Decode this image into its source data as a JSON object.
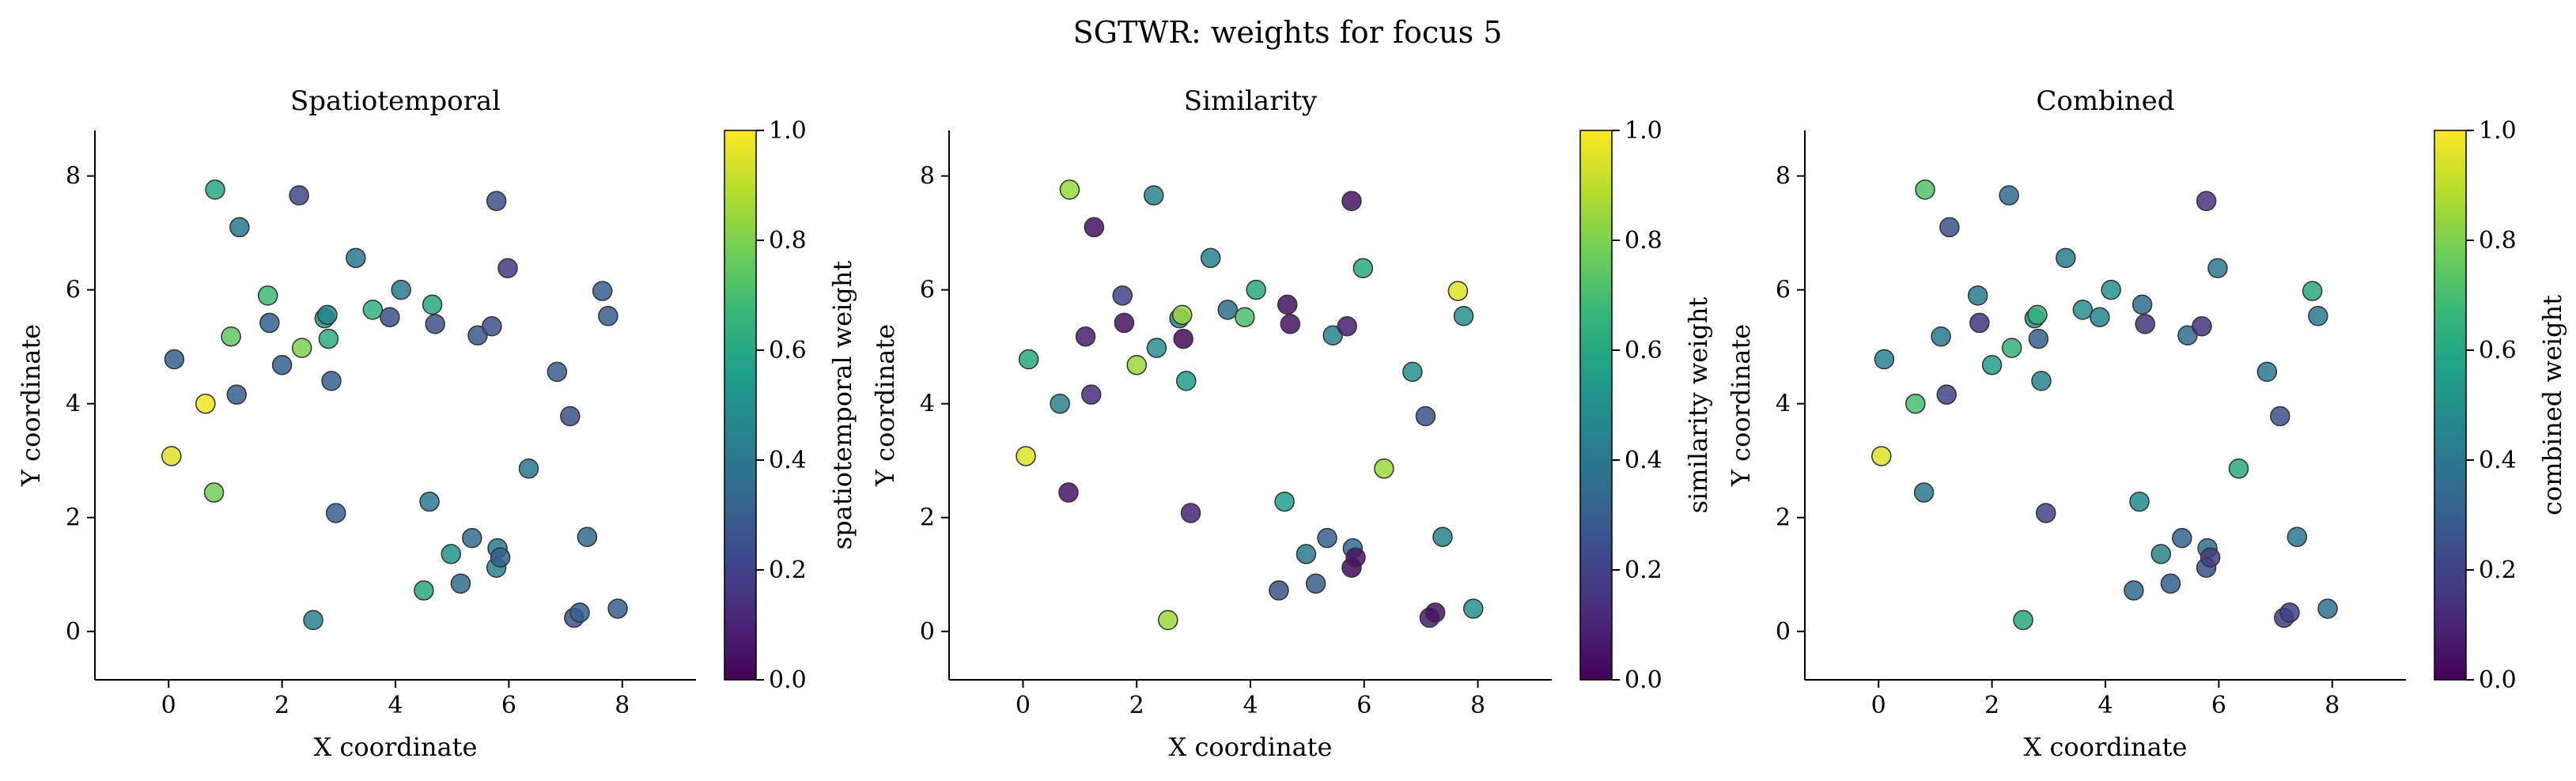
{
  "suptitle": "SGTWR: weights for focus 5",
  "colormap": "viridis",
  "colors": {
    "viridis_stops": [
      "#440154",
      "#482878",
      "#3e4989",
      "#31688e",
      "#26828e",
      "#1f9e89",
      "#35b779",
      "#6ece58",
      "#b5de2b",
      "#fde725"
    ],
    "axis": "#000000",
    "marker_edge": "#333333"
  },
  "chart_data": [
    {
      "type": "scatter",
      "title": "Spatiotemporal",
      "xlabel": "X coordinate",
      "ylabel": "Y coordinate",
      "colorbar_label": "spatiotemporal weight",
      "xlim": [
        -1.3,
        9.3
      ],
      "ylim": [
        -0.85,
        8.8
      ],
      "xticks": [
        0,
        2,
        4,
        6,
        8
      ],
      "yticks": [
        0,
        2,
        4,
        6,
        8
      ],
      "cbar_ticks": [
        "0.0",
        "0.2",
        "0.4",
        "0.6",
        "0.8",
        "1.0"
      ],
      "points": [
        {
          "x": 0.05,
          "y": 3.08,
          "w": 0.95
        },
        {
          "x": 0.1,
          "y": 4.78,
          "w": 0.3
        },
        {
          "x": 0.65,
          "y": 4.0,
          "w": 0.98
        },
        {
          "x": 0.8,
          "y": 2.44,
          "w": 0.78
        },
        {
          "x": 0.82,
          "y": 7.76,
          "w": 0.6
        },
        {
          "x": 1.1,
          "y": 5.18,
          "w": 0.75
        },
        {
          "x": 1.2,
          "y": 4.16,
          "w": 0.3
        },
        {
          "x": 1.25,
          "y": 7.1,
          "w": 0.4
        },
        {
          "x": 1.75,
          "y": 5.9,
          "w": 0.68
        },
        {
          "x": 1.78,
          "y": 5.42,
          "w": 0.3
        },
        {
          "x": 2.0,
          "y": 4.68,
          "w": 0.3
        },
        {
          "x": 2.3,
          "y": 7.66,
          "w": 0.22
        },
        {
          "x": 2.35,
          "y": 4.98,
          "w": 0.8
        },
        {
          "x": 2.75,
          "y": 5.5,
          "w": 0.52
        },
        {
          "x": 2.8,
          "y": 5.56,
          "w": 0.45
        },
        {
          "x": 2.82,
          "y": 5.14,
          "w": 0.62
        },
        {
          "x": 2.87,
          "y": 4.4,
          "w": 0.3
        },
        {
          "x": 2.95,
          "y": 2.08,
          "w": 0.3
        },
        {
          "x": 3.3,
          "y": 6.56,
          "w": 0.4
        },
        {
          "x": 3.6,
          "y": 5.65,
          "w": 0.65
        },
        {
          "x": 3.9,
          "y": 5.52,
          "w": 0.25
        },
        {
          "x": 4.1,
          "y": 6.0,
          "w": 0.4
        },
        {
          "x": 4.5,
          "y": 0.72,
          "w": 0.6
        },
        {
          "x": 4.6,
          "y": 2.28,
          "w": 0.4
        },
        {
          "x": 4.65,
          "y": 5.74,
          "w": 0.6
        },
        {
          "x": 4.7,
          "y": 5.4,
          "w": 0.25
        },
        {
          "x": 4.98,
          "y": 1.36,
          "w": 0.52
        },
        {
          "x": 5.15,
          "y": 0.84,
          "w": 0.35
        },
        {
          "x": 5.35,
          "y": 1.64,
          "w": 0.35
        },
        {
          "x": 5.45,
          "y": 5.2,
          "w": 0.28
        },
        {
          "x": 5.7,
          "y": 5.36,
          "w": 0.25
        },
        {
          "x": 5.78,
          "y": 7.56,
          "w": 0.25
        },
        {
          "x": 5.78,
          "y": 1.12,
          "w": 0.45
        },
        {
          "x": 5.8,
          "y": 1.46,
          "w": 0.42
        },
        {
          "x": 5.85,
          "y": 1.3,
          "w": 0.3
        },
        {
          "x": 5.98,
          "y": 6.38,
          "w": 0.18
        },
        {
          "x": 6.35,
          "y": 2.86,
          "w": 0.4
        },
        {
          "x": 6.85,
          "y": 4.56,
          "w": 0.3
        },
        {
          "x": 7.08,
          "y": 3.78,
          "w": 0.25
        },
        {
          "x": 7.15,
          "y": 0.24,
          "w": 0.25
        },
        {
          "x": 7.25,
          "y": 0.33,
          "w": 0.3
        },
        {
          "x": 7.38,
          "y": 1.66,
          "w": 0.35
        },
        {
          "x": 7.65,
          "y": 5.98,
          "w": 0.3
        },
        {
          "x": 7.75,
          "y": 5.54,
          "w": 0.3
        },
        {
          "x": 7.92,
          "y": 0.4,
          "w": 0.3
        },
        {
          "x": 2.55,
          "y": 0.2,
          "w": 0.45
        }
      ]
    },
    {
      "type": "scatter",
      "title": "Similarity",
      "xlabel": "X coordinate",
      "ylabel": "Y coordinate",
      "colorbar_label": "similarity weight",
      "xlim": [
        -1.3,
        9.3
      ],
      "ylim": [
        -0.85,
        8.8
      ],
      "xticks": [
        0,
        2,
        4,
        6,
        8
      ],
      "yticks": [
        0,
        2,
        4,
        6,
        8
      ],
      "cbar_ticks": [
        "0.0",
        "0.2",
        "0.4",
        "0.6",
        "0.8",
        "1.0"
      ],
      "points": [
        {
          "x": 0.05,
          "y": 3.08,
          "w": 0.95
        },
        {
          "x": 0.1,
          "y": 4.78,
          "w": 0.6
        },
        {
          "x": 0.65,
          "y": 4.0,
          "w": 0.45
        },
        {
          "x": 0.8,
          "y": 2.44,
          "w": 0.05
        },
        {
          "x": 0.82,
          "y": 7.76,
          "w": 0.85
        },
        {
          "x": 1.1,
          "y": 5.18,
          "w": 0.08
        },
        {
          "x": 1.2,
          "y": 4.16,
          "w": 0.12
        },
        {
          "x": 1.25,
          "y": 7.1,
          "w": 0.05
        },
        {
          "x": 1.75,
          "y": 5.9,
          "w": 0.2
        },
        {
          "x": 1.78,
          "y": 5.42,
          "w": 0.05
        },
        {
          "x": 2.0,
          "y": 4.68,
          "w": 0.85
        },
        {
          "x": 2.3,
          "y": 7.66,
          "w": 0.45
        },
        {
          "x": 2.35,
          "y": 4.98,
          "w": 0.5
        },
        {
          "x": 2.75,
          "y": 5.5,
          "w": 0.45
        },
        {
          "x": 2.8,
          "y": 5.56,
          "w": 0.85
        },
        {
          "x": 2.82,
          "y": 5.14,
          "w": 0.02
        },
        {
          "x": 2.87,
          "y": 4.4,
          "w": 0.55
        },
        {
          "x": 2.95,
          "y": 2.08,
          "w": 0.1
        },
        {
          "x": 3.3,
          "y": 6.56,
          "w": 0.45
        },
        {
          "x": 3.6,
          "y": 5.65,
          "w": 0.35
        },
        {
          "x": 3.9,
          "y": 5.52,
          "w": 0.7
        },
        {
          "x": 4.1,
          "y": 6.0,
          "w": 0.6
        },
        {
          "x": 4.5,
          "y": 0.72,
          "w": 0.25
        },
        {
          "x": 4.6,
          "y": 2.28,
          "w": 0.55
        },
        {
          "x": 4.65,
          "y": 5.74,
          "w": 0.05
        },
        {
          "x": 4.7,
          "y": 5.4,
          "w": 0.05
        },
        {
          "x": 4.98,
          "y": 1.36,
          "w": 0.4
        },
        {
          "x": 5.15,
          "y": 0.84,
          "w": 0.3
        },
        {
          "x": 5.35,
          "y": 1.64,
          "w": 0.3
        },
        {
          "x": 5.45,
          "y": 5.2,
          "w": 0.45
        },
        {
          "x": 5.7,
          "y": 5.36,
          "w": 0.08
        },
        {
          "x": 5.78,
          "y": 7.56,
          "w": 0.05
        },
        {
          "x": 5.78,
          "y": 1.12,
          "w": 0.02
        },
        {
          "x": 5.8,
          "y": 1.46,
          "w": 0.35
        },
        {
          "x": 5.85,
          "y": 1.3,
          "w": 0.05
        },
        {
          "x": 5.98,
          "y": 6.38,
          "w": 0.6
        },
        {
          "x": 6.35,
          "y": 2.86,
          "w": 0.85
        },
        {
          "x": 6.85,
          "y": 4.56,
          "w": 0.5
        },
        {
          "x": 7.08,
          "y": 3.78,
          "w": 0.25
        },
        {
          "x": 7.15,
          "y": 0.24,
          "w": 0.08
        },
        {
          "x": 7.25,
          "y": 0.33,
          "w": 0.05
        },
        {
          "x": 7.38,
          "y": 1.66,
          "w": 0.45
        },
        {
          "x": 7.65,
          "y": 5.98,
          "w": 0.95
        },
        {
          "x": 7.75,
          "y": 5.54,
          "w": 0.5
        },
        {
          "x": 7.92,
          "y": 0.4,
          "w": 0.5
        },
        {
          "x": 2.55,
          "y": 0.2,
          "w": 0.85
        }
      ]
    },
    {
      "type": "scatter",
      "title": "Combined",
      "xlabel": "X coordinate",
      "ylabel": "Y coordinate",
      "colorbar_label": "combined weight",
      "xlim": [
        -1.3,
        9.3
      ],
      "ylim": [
        -0.85,
        8.8
      ],
      "xticks": [
        0,
        2,
        4,
        6,
        8
      ],
      "yticks": [
        0,
        2,
        4,
        6,
        8
      ],
      "cbar_ticks": [
        "0.0",
        "0.2",
        "0.4",
        "0.6",
        "0.8",
        "1.0"
      ],
      "points": [
        {
          "x": 0.05,
          "y": 3.08,
          "w": 0.95
        },
        {
          "x": 0.1,
          "y": 4.78,
          "w": 0.45
        },
        {
          "x": 0.65,
          "y": 4.0,
          "w": 0.7
        },
        {
          "x": 0.8,
          "y": 2.44,
          "w": 0.4
        },
        {
          "x": 0.82,
          "y": 7.76,
          "w": 0.72
        },
        {
          "x": 1.1,
          "y": 5.18,
          "w": 0.4
        },
        {
          "x": 1.2,
          "y": 4.16,
          "w": 0.2
        },
        {
          "x": 1.25,
          "y": 7.1,
          "w": 0.25
        },
        {
          "x": 1.75,
          "y": 5.9,
          "w": 0.42
        },
        {
          "x": 1.78,
          "y": 5.42,
          "w": 0.15
        },
        {
          "x": 2.0,
          "y": 4.68,
          "w": 0.55
        },
        {
          "x": 2.3,
          "y": 7.66,
          "w": 0.35
        },
        {
          "x": 2.35,
          "y": 4.98,
          "w": 0.65
        },
        {
          "x": 2.75,
          "y": 5.5,
          "w": 0.5
        },
        {
          "x": 2.8,
          "y": 5.56,
          "w": 0.65
        },
        {
          "x": 2.82,
          "y": 5.14,
          "w": 0.3
        },
        {
          "x": 2.87,
          "y": 4.4,
          "w": 0.45
        },
        {
          "x": 2.95,
          "y": 2.08,
          "w": 0.2
        },
        {
          "x": 3.3,
          "y": 6.56,
          "w": 0.42
        },
        {
          "x": 3.6,
          "y": 5.65,
          "w": 0.5
        },
        {
          "x": 3.9,
          "y": 5.52,
          "w": 0.45
        },
        {
          "x": 4.1,
          "y": 6.0,
          "w": 0.5
        },
        {
          "x": 4.5,
          "y": 0.72,
          "w": 0.35
        },
        {
          "x": 4.6,
          "y": 2.28,
          "w": 0.48
        },
        {
          "x": 4.65,
          "y": 5.74,
          "w": 0.35
        },
        {
          "x": 4.7,
          "y": 5.4,
          "w": 0.15
        },
        {
          "x": 4.98,
          "y": 1.36,
          "w": 0.45
        },
        {
          "x": 5.15,
          "y": 0.84,
          "w": 0.3
        },
        {
          "x": 5.35,
          "y": 1.64,
          "w": 0.32
        },
        {
          "x": 5.45,
          "y": 5.2,
          "w": 0.35
        },
        {
          "x": 5.7,
          "y": 5.36,
          "w": 0.15
        },
        {
          "x": 5.78,
          "y": 7.56,
          "w": 0.15
        },
        {
          "x": 5.78,
          "y": 1.12,
          "w": 0.25
        },
        {
          "x": 5.8,
          "y": 1.46,
          "w": 0.38
        },
        {
          "x": 5.85,
          "y": 1.3,
          "w": 0.18
        },
        {
          "x": 5.98,
          "y": 6.38,
          "w": 0.4
        },
        {
          "x": 6.35,
          "y": 2.86,
          "w": 0.6
        },
        {
          "x": 6.85,
          "y": 4.56,
          "w": 0.4
        },
        {
          "x": 7.08,
          "y": 3.78,
          "w": 0.25
        },
        {
          "x": 7.15,
          "y": 0.24,
          "w": 0.18
        },
        {
          "x": 7.25,
          "y": 0.33,
          "w": 0.2
        },
        {
          "x": 7.38,
          "y": 1.66,
          "w": 0.4
        },
        {
          "x": 7.65,
          "y": 5.98,
          "w": 0.6
        },
        {
          "x": 7.75,
          "y": 5.54,
          "w": 0.4
        },
        {
          "x": 7.92,
          "y": 0.4,
          "w": 0.38
        },
        {
          "x": 2.55,
          "y": 0.2,
          "w": 0.6
        }
      ]
    }
  ]
}
